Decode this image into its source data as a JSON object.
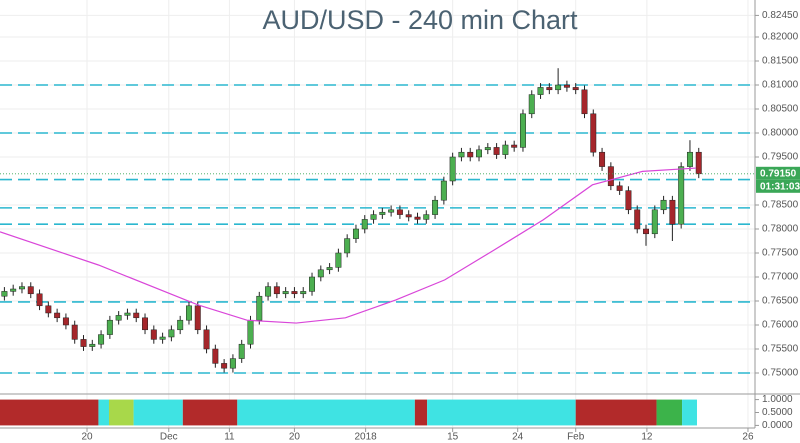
{
  "chart_data": {
    "type": "candlestick",
    "title": "AUD/USD - 240 min Chart",
    "up_color": "#4caf50",
    "down_color": "#a5262b",
    "wick_color": "#222222",
    "grid": true,
    "xlim": [
      -0.5,
      85.4
    ],
    "xticks": [
      {
        "value": 9.4,
        "label": "20"
      },
      {
        "value": 18.7,
        "label": "Dec"
      },
      {
        "value": 25.6,
        "label": "11"
      },
      {
        "value": 33,
        "label": "20"
      },
      {
        "value": 41.1,
        "label": "2018"
      },
      {
        "value": 51,
        "label": "15"
      },
      {
        "value": 58.4,
        "label": "24"
      },
      {
        "value": 65,
        "label": "Feb"
      },
      {
        "value": 73.1,
        "label": "12"
      },
      {
        "value": 84.6,
        "label": "26"
      }
    ],
    "ylim": [
      0.74604,
      0.82771
    ],
    "yticks": [
      {
        "value": 0.8245,
        "label": "0.82450"
      },
      {
        "value": 0.82,
        "label": "0.82000"
      },
      {
        "value": 0.815,
        "label": "0.81500"
      },
      {
        "value": 0.81,
        "label": "0.81000"
      },
      {
        "value": 0.805,
        "label": "0.80500"
      },
      {
        "value": 0.8,
        "label": "0.80000"
      },
      {
        "value": 0.795,
        "label": "0.79500"
      },
      {
        "value": 0.785,
        "label": "0.78500"
      },
      {
        "value": 0.78,
        "label": "0.78000"
      },
      {
        "value": 0.775,
        "label": "0.77500"
      },
      {
        "value": 0.77,
        "label": "0.77000"
      },
      {
        "value": 0.765,
        "label": "0.76500"
      },
      {
        "value": 0.76,
        "label": "0.76000"
      },
      {
        "value": 0.755,
        "label": "0.75500"
      },
      {
        "value": 0.75,
        "label": "0.75000"
      }
    ],
    "open": [
      0.766,
      0.767,
      0.7675,
      0.768,
      0.7665,
      0.764,
      0.7625,
      0.7615,
      0.76,
      0.757,
      0.7555,
      0.756,
      0.758,
      0.761,
      0.762,
      0.7625,
      0.7615,
      0.759,
      0.757,
      0.7575,
      0.759,
      0.761,
      0.764,
      0.759,
      0.755,
      0.752,
      0.751,
      0.753,
      0.756,
      0.761,
      0.766,
      0.768,
      0.7665,
      0.767,
      0.7665,
      0.767,
      0.77,
      0.7715,
      0.772,
      0.775,
      0.778,
      0.78,
      0.782,
      0.783,
      0.7835,
      0.784,
      0.783,
      0.7825,
      0.782,
      0.783,
      0.786,
      0.79,
      0.795,
      0.796,
      0.795,
      0.7965,
      0.797,
      0.7955,
      0.7975,
      0.797,
      0.804,
      0.808,
      0.8095,
      0.809,
      0.81,
      0.8095,
      0.809,
      0.804,
      0.796,
      0.793,
      0.789,
      0.788,
      0.784,
      0.78,
      0.779,
      0.784,
      0.786,
      0.781,
      0.793,
      0.796
    ],
    "high": [
      0.7679,
      0.7684,
      0.7689,
      0.7689,
      0.7674,
      0.7649,
      0.7634,
      0.7624,
      0.7609,
      0.7579,
      0.7569,
      0.7589,
      0.7619,
      0.7629,
      0.7634,
      0.7634,
      0.7624,
      0.7599,
      0.7584,
      0.7599,
      0.7619,
      0.7649,
      0.7649,
      0.7599,
      0.7559,
      0.7529,
      0.7539,
      0.7569,
      0.7619,
      0.7669,
      0.7689,
      0.7689,
      0.7679,
      0.7679,
      0.7679,
      0.7709,
      0.7724,
      0.7729,
      0.7759,
      0.7789,
      0.7809,
      0.7829,
      0.7839,
      0.7844,
      0.7849,
      0.7849,
      0.7839,
      0.7834,
      0.7839,
      0.7869,
      0.7909,
      0.7959,
      0.7969,
      0.7969,
      0.7974,
      0.7979,
      0.7979,
      0.7984,
      0.7984,
      0.8049,
      0.8089,
      0.8104,
      0.8104,
      0.8135,
      0.8109,
      0.8104,
      0.8099,
      0.8049,
      0.7969,
      0.7939,
      0.7899,
      0.7889,
      0.7849,
      0.7809,
      0.7849,
      0.7869,
      0.7869,
      0.7939,
      0.7985,
      0.7969
    ],
    "low": [
      0.7651,
      0.7661,
      0.7666,
      0.7656,
      0.7631,
      0.7616,
      0.7606,
      0.7591,
      0.7561,
      0.7546,
      0.7546,
      0.7551,
      0.7571,
      0.7601,
      0.7611,
      0.7606,
      0.7581,
      0.7561,
      0.7561,
      0.7566,
      0.7581,
      0.7601,
      0.7581,
      0.7541,
      0.7511,
      0.7501,
      0.7501,
      0.7521,
      0.7551,
      0.7601,
      0.7651,
      0.7656,
      0.7656,
      0.7656,
      0.7656,
      0.7661,
      0.7691,
      0.7706,
      0.7711,
      0.7741,
      0.7771,
      0.7791,
      0.7811,
      0.7821,
      0.7826,
      0.7821,
      0.7816,
      0.7811,
      0.7811,
      0.7821,
      0.7851,
      0.7891,
      0.7941,
      0.7941,
      0.7941,
      0.7956,
      0.7946,
      0.7946,
      0.7961,
      0.7961,
      0.8031,
      0.8071,
      0.8081,
      0.8081,
      0.8086,
      0.8081,
      0.8031,
      0.7951,
      0.7921,
      0.7881,
      0.7871,
      0.7831,
      0.7791,
      0.7765,
      0.7781,
      0.7831,
      0.7775,
      0.7801,
      0.7921,
      0.7906
    ],
    "close": [
      0.767,
      0.7675,
      0.768,
      0.7665,
      0.764,
      0.7625,
      0.7615,
      0.76,
      0.757,
      0.7555,
      0.756,
      0.758,
      0.761,
      0.762,
      0.7625,
      0.7615,
      0.759,
      0.757,
      0.7575,
      0.759,
      0.761,
      0.764,
      0.759,
      0.755,
      0.752,
      0.751,
      0.753,
      0.756,
      0.761,
      0.766,
      0.768,
      0.7665,
      0.767,
      0.7665,
      0.767,
      0.77,
      0.7715,
      0.772,
      0.775,
      0.778,
      0.78,
      0.782,
      0.783,
      0.7835,
      0.784,
      0.783,
      0.7825,
      0.782,
      0.783,
      0.786,
      0.79,
      0.795,
      0.796,
      0.795,
      0.7965,
      0.797,
      0.7955,
      0.7975,
      0.797,
      0.804,
      0.808,
      0.8095,
      0.809,
      0.81,
      0.8095,
      0.809,
      0.804,
      0.796,
      0.793,
      0.789,
      0.788,
      0.784,
      0.78,
      0.779,
      0.784,
      0.786,
      0.781,
      0.793,
      0.796,
      0.7915
    ],
    "moving_average": {
      "color": "#d946d9",
      "x": [
        -0.5,
        10.7,
        22,
        27.6,
        33.2,
        38.8,
        44.5,
        50.1,
        55.7,
        61.3,
        66.9,
        72.6,
        78.7
      ],
      "values": [
        0.7794,
        0.7725,
        0.7642,
        0.761,
        0.7604,
        0.7615,
        0.7652,
        0.7694,
        0.7756,
        0.7819,
        0.7892,
        0.792,
        0.7927
      ]
    },
    "levels": {
      "color": "#2bb7cf",
      "values": [
        0.81,
        0.8,
        0.7903,
        0.7844,
        0.781,
        0.7648,
        0.75
      ]
    },
    "last_price": {
      "value": 0.7915,
      "label": "0.79150",
      "color": "#3aa757"
    },
    "countdown": "01:31:03",
    "indicator": {
      "ylim": [
        -0.1,
        1.1
      ],
      "yticks": [
        {
          "value": 1,
          "label": "1.0000"
        },
        {
          "value": 0.5,
          "label": "0.5000"
        },
        {
          "value": 0,
          "label": "0.0000"
        }
      ],
      "segments": [
        {
          "start": -0.5,
          "end": 10.7,
          "color": "#b22a2a"
        },
        {
          "start": 10.7,
          "end": 11.9,
          "color": "#3fe3e3"
        },
        {
          "start": 11.9,
          "end": 14.7,
          "color": "#a8d84a"
        },
        {
          "start": 14.7,
          "end": 20.3,
          "color": "#3fe3e3"
        },
        {
          "start": 20.3,
          "end": 26.5,
          "color": "#b22a2a"
        },
        {
          "start": 26.5,
          "end": 46.7,
          "color": "#3fe3e3"
        },
        {
          "start": 46.7,
          "end": 48.1,
          "color": "#b22a2a"
        },
        {
          "start": 48.1,
          "end": 65.0,
          "color": "#3fe3e3"
        },
        {
          "start": 65.0,
          "end": 74.2,
          "color": "#b22a2a"
        },
        {
          "start": 74.2,
          "end": 77.1,
          "color": "#3cb34a"
        },
        {
          "start": 77.1,
          "end": 78.8,
          "color": "#3fe3e3"
        }
      ]
    }
  }
}
